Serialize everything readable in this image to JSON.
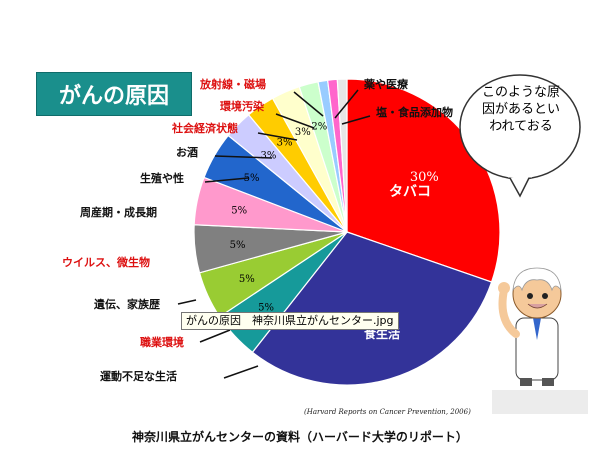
{
  "title": "がんの原因",
  "callout": "このような原因があるといわれておる",
  "tooltip": "がんの原因　神奈川県立がんセンター.jpg",
  "citation": "(Harvard Reports on Cancer Prevention, 2006)",
  "source": "神奈川県立がんセンターの資料（ハーバード大学のリポート）",
  "chart_data": {
    "type": "pie",
    "title": "がんの原因",
    "slices": [
      {
        "label": "タバコ",
        "value": 30,
        "value_label": "30%",
        "color": "#ff0000",
        "label_color": "#ffffff"
      },
      {
        "label": "食生活",
        "value": 30,
        "value_label": "30%",
        "color": "#333399",
        "label_color": "#ffffff"
      },
      {
        "label": "運動不足な生活",
        "value": 5,
        "value_label": "5%",
        "color": "#169a9a",
        "label_color": "#000000"
      },
      {
        "label": "職業環境",
        "value": 5,
        "value_label": "5%",
        "color": "#99cc33",
        "label_color": "#000000"
      },
      {
        "label": "遺伝、家族歴",
        "value": 5,
        "value_label": "5%",
        "color": "#808080",
        "label_color": "#000000"
      },
      {
        "label": "ウイルス、微生物",
        "value": 5,
        "value_label": "5%",
        "color": "#ff99cc",
        "label_color": "#000000"
      },
      {
        "label": "周産期・成長期",
        "value": 5,
        "value_label": "5%",
        "color": "#2266cc",
        "label_color": "#000000"
      },
      {
        "label": "生殖や性",
        "value": 3,
        "value_label": "3%",
        "color": "#ccccff",
        "label_color": "#000000"
      },
      {
        "label": "お酒",
        "value": 3,
        "value_label": "3%",
        "color": "#ffcc00",
        "label_color": "#000000"
      },
      {
        "label": "社会経済状態",
        "value": 3,
        "value_label": "3%",
        "color": "#ffffcc",
        "label_color": "#000000"
      },
      {
        "label": "環境汚染",
        "value": 2,
        "value_label": "2%",
        "color": "#ccffcc",
        "label_color": "#000000"
      },
      {
        "label": "放射線・磁場",
        "value": 1,
        "value_label": "",
        "color": "#99ccff",
        "label_color": "#000000"
      },
      {
        "label": "薬や医療",
        "value": 1,
        "value_label": "",
        "color": "#ff66cc",
        "label_color": "#000000"
      },
      {
        "label": "塩・食品添加物",
        "value": 1,
        "value_label": "",
        "color": "#e6e6e6",
        "label_color": "#000000"
      }
    ],
    "label_colors": {
      "red": "#dd1111",
      "black": "#111111"
    },
    "red_labels": [
      "職業環境",
      "ウイルス、微生物",
      "社会経済状態",
      "環境汚染",
      "放射線・磁場"
    ],
    "legend": "none"
  }
}
